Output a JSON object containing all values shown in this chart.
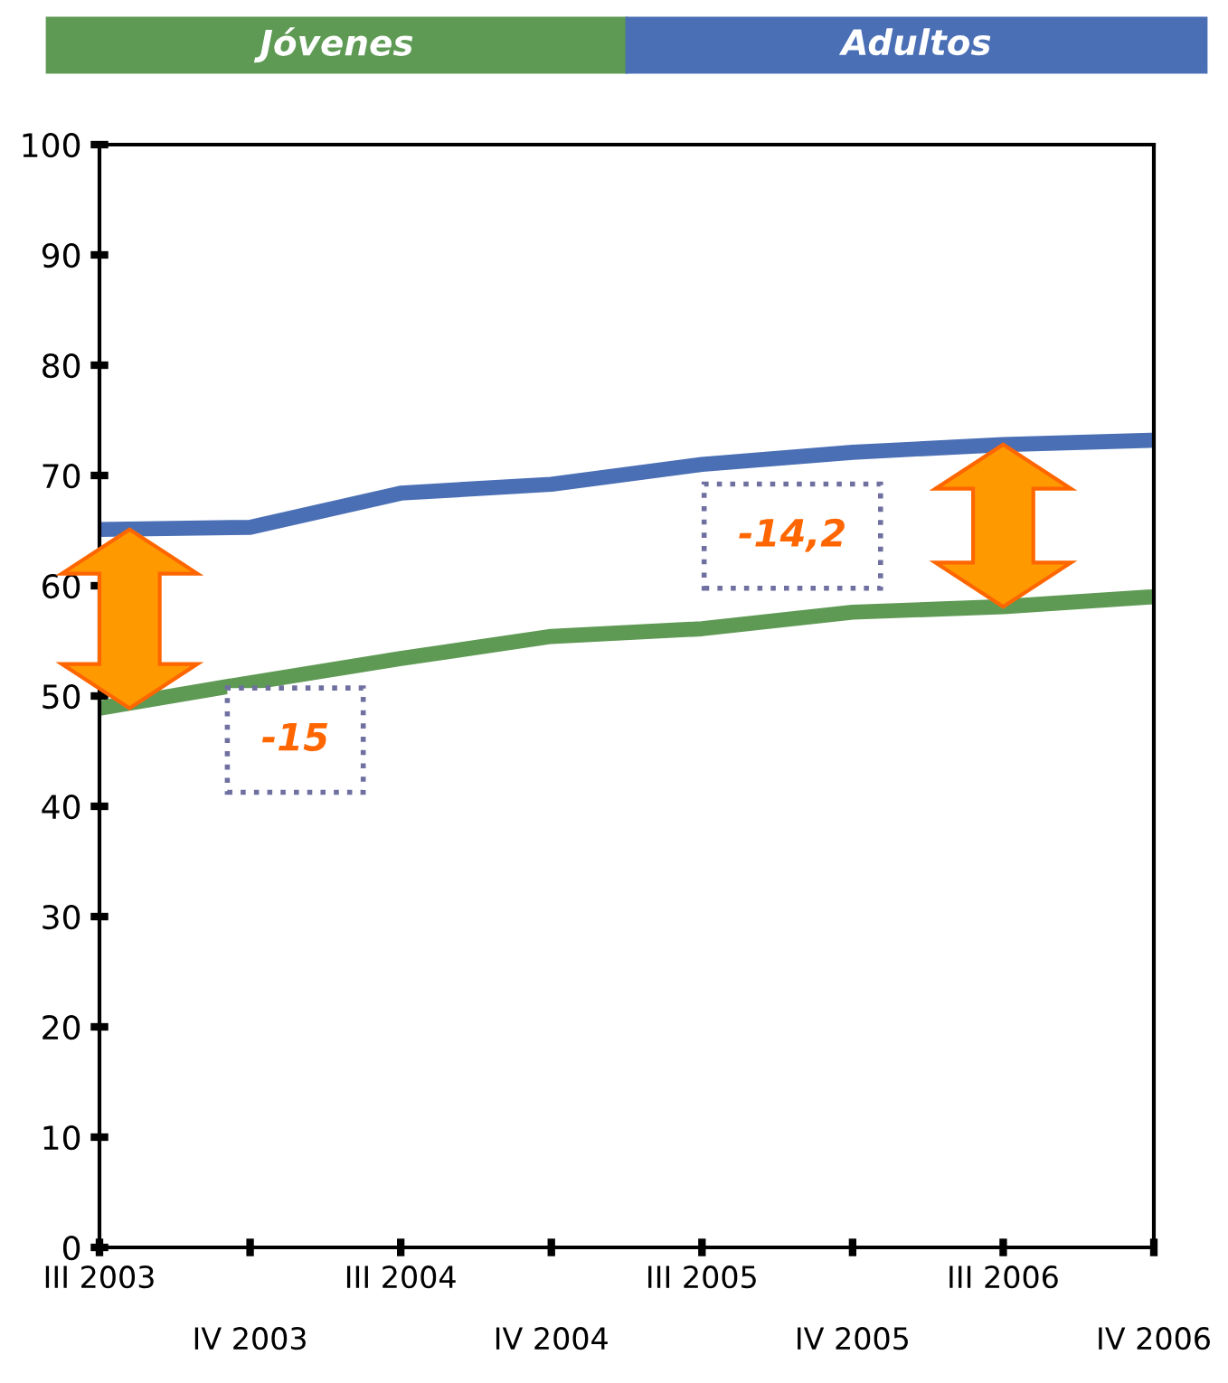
{
  "chart_data": {
    "type": "line",
    "categories": [
      "III 2003",
      "IV 2003",
      "III 2004",
      "IV 2004",
      "III 2005",
      "IV 2005",
      "III 2006",
      "IV 2006"
    ],
    "series": [
      {
        "name": "Jóvenes",
        "color": "#5f9a55",
        "values": [
          48.9,
          51.2,
          53.4,
          55.4,
          56.1,
          57.6,
          58.1,
          59.0
        ]
      },
      {
        "name": "Adultos",
        "color": "#4a6fb5",
        "values": [
          65.1,
          65.3,
          68.4,
          69.2,
          71.0,
          72.1,
          72.8,
          73.2
        ]
      }
    ],
    "ylim": [
      0,
      100
    ],
    "yticks": [
      0,
      10,
      20,
      30,
      40,
      50,
      60,
      70,
      80,
      90,
      100
    ],
    "annotations": [
      "-15",
      "-14,2"
    ],
    "legend": "top",
    "grid": false,
    "marker": "none",
    "line_style": "solid"
  }
}
